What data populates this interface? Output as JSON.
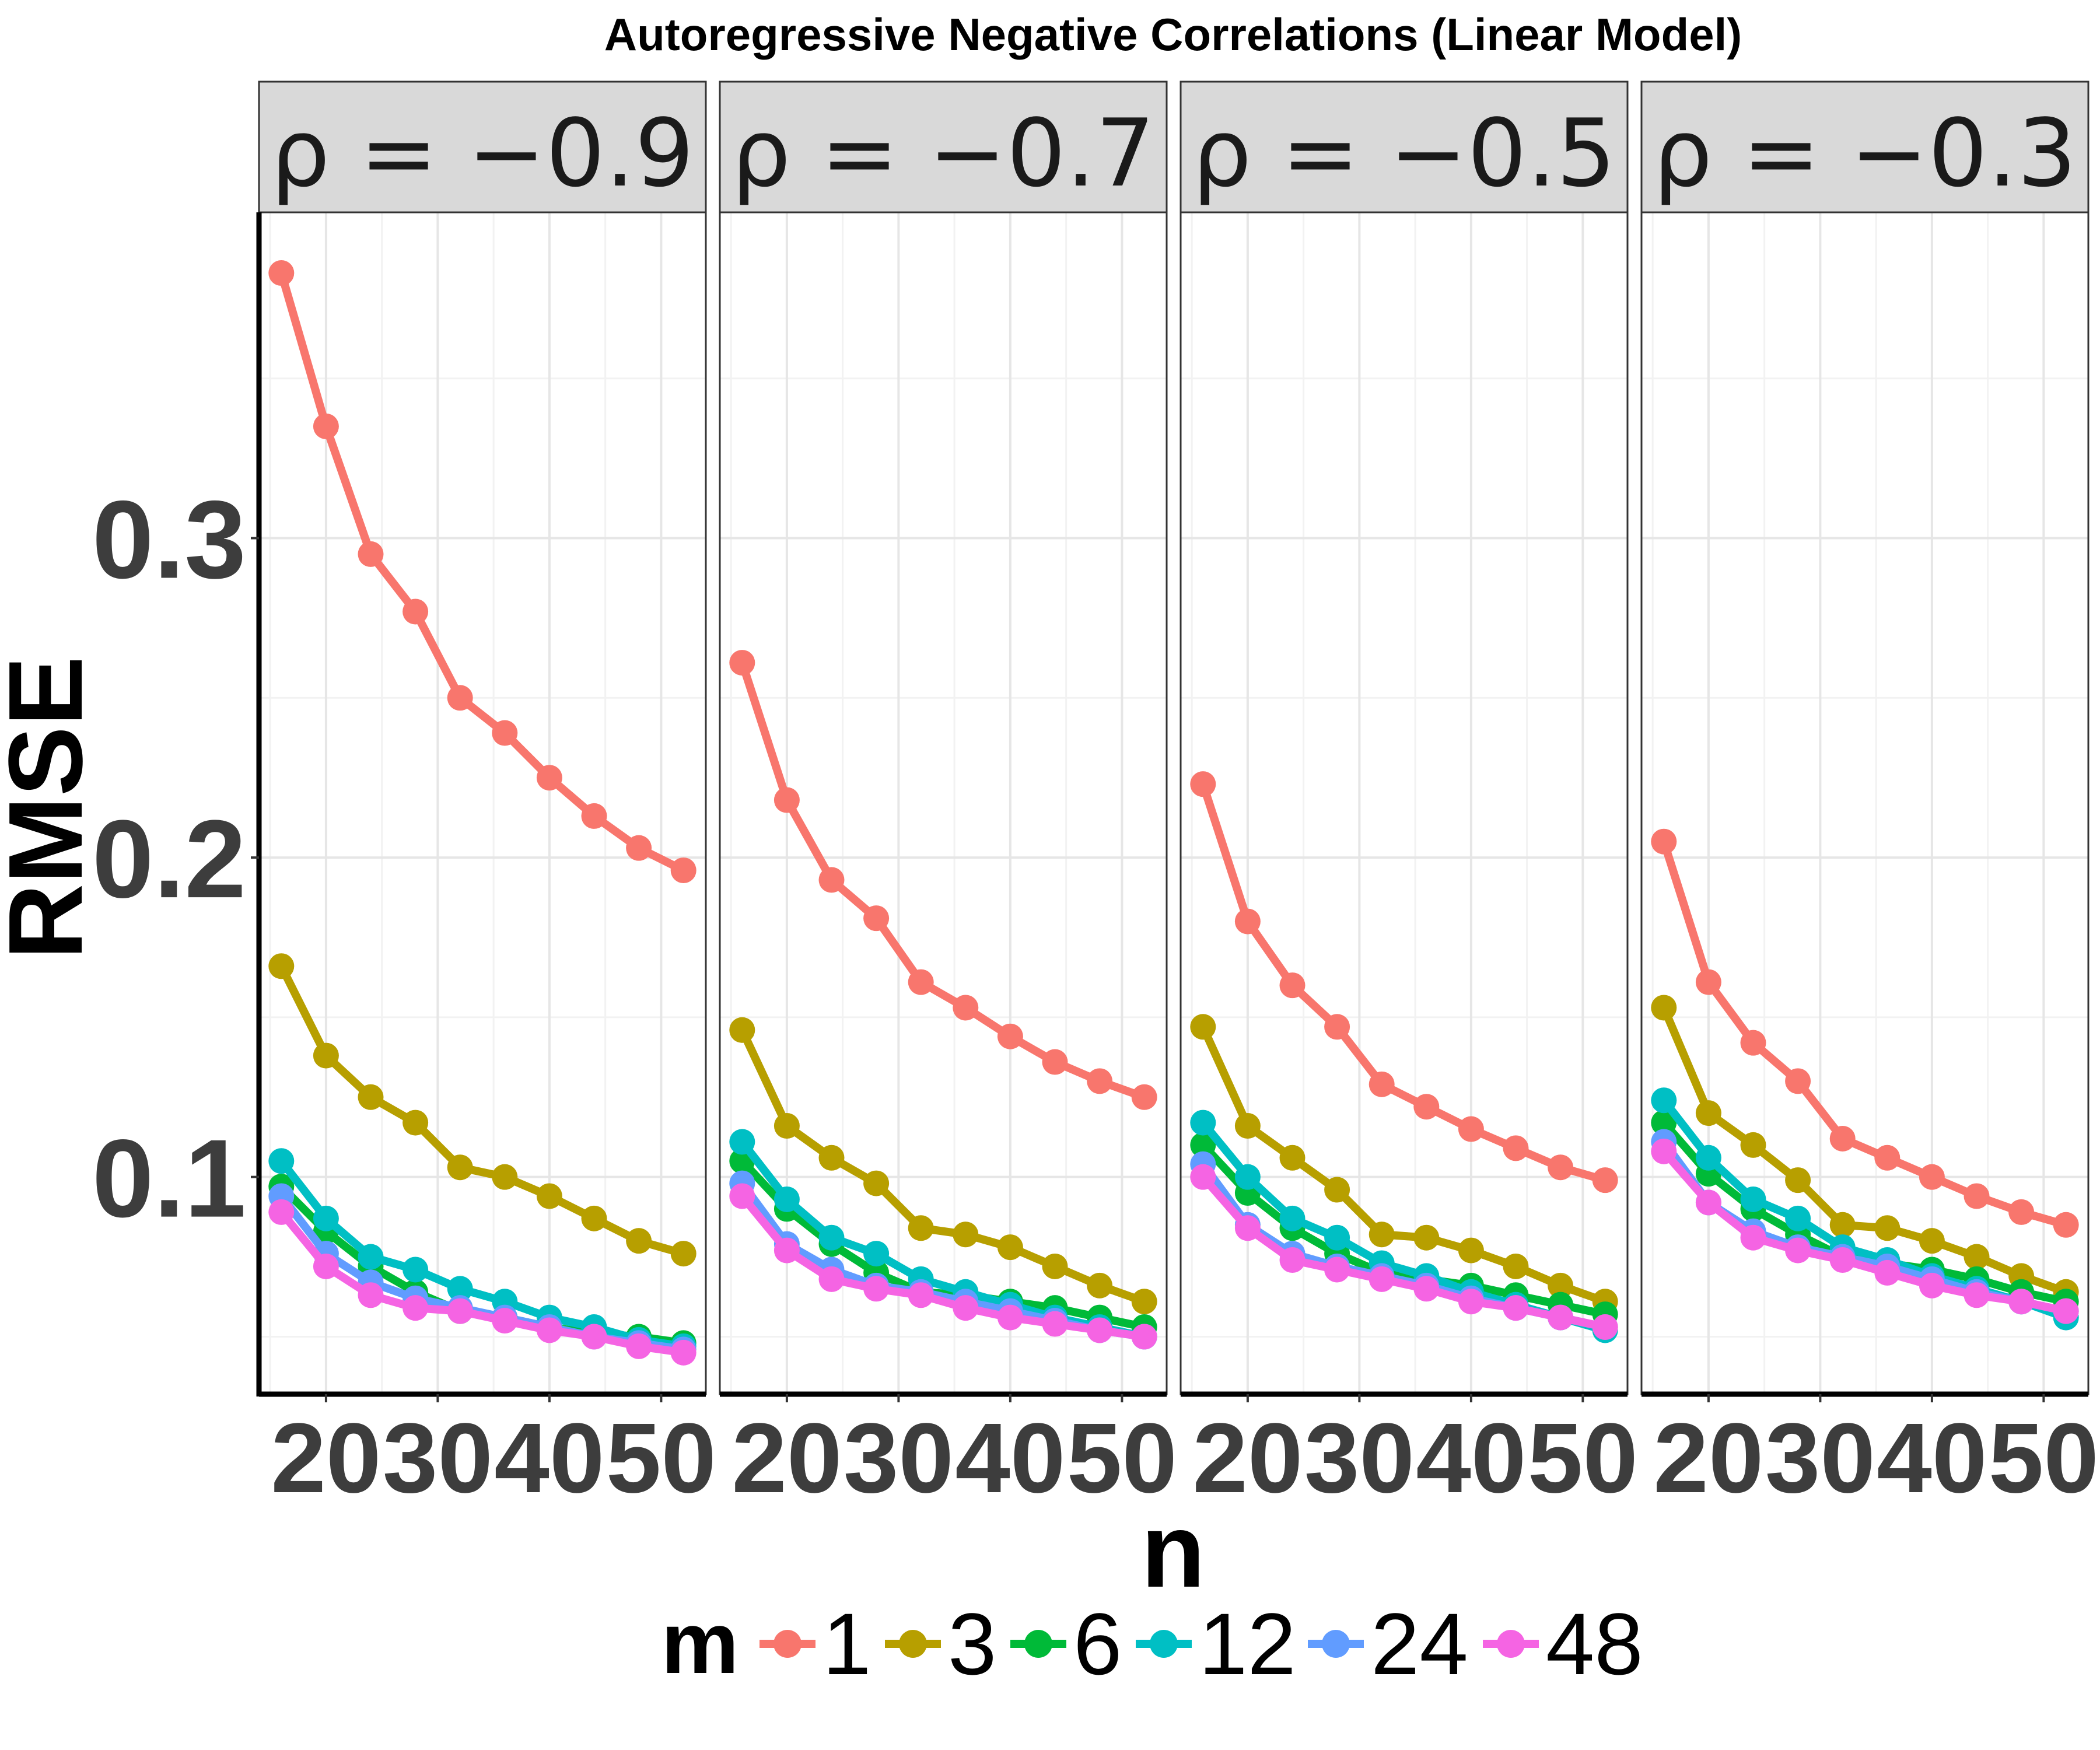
{
  "chart_data": {
    "type": "line",
    "title": "Autoregressive Negative Correlations (Linear Model)",
    "xlabel": "n",
    "ylabel": "RMSE",
    "xlim": [
      14,
      54
    ],
    "ylim": [
      0.032,
      0.402
    ],
    "xticks": [
      "20",
      "30",
      "40",
      "50"
    ],
    "yticks": [
      "0.1",
      "0.2",
      "0.3"
    ],
    "grid": true,
    "legend": {
      "title": "m",
      "position": "bottom"
    },
    "x": [
      16,
      20,
      24,
      28,
      32,
      36,
      40,
      44,
      48,
      52
    ],
    "facets": [
      {
        "strip": "ρ = −0.9",
        "series": [
          {
            "name": "1",
            "color": "#F8766D",
            "values": [
              0.383,
              0.335,
              0.295,
              0.277,
              0.25,
              0.239,
              0.225,
              0.213,
              0.203,
              0.196
            ]
          },
          {
            "name": "3",
            "color": "#B79F00",
            "values": [
              0.166,
              0.138,
              0.125,
              0.117,
              0.103,
              0.1,
              0.094,
              0.087,
              0.08,
              0.076
            ]
          },
          {
            "name": "6",
            "color": "#00BA38",
            "values": [
              0.097,
              0.083,
              0.072,
              0.064,
              0.058,
              0.056,
              0.053,
              0.051,
              0.05,
              0.048
            ]
          },
          {
            "name": "12",
            "color": "#00BFC4",
            "values": [
              0.105,
              0.087,
              0.075,
              0.071,
              0.065,
              0.061,
              0.056,
              0.053,
              0.049,
              0.047
            ]
          },
          {
            "name": "24",
            "color": "#619CFF",
            "values": [
              0.094,
              0.076,
              0.067,
              0.062,
              0.059,
              0.056,
              0.053,
              0.05,
              0.048,
              0.046
            ]
          },
          {
            "name": "48",
            "color": "#F564E3",
            "values": [
              0.089,
              0.072,
              0.063,
              0.059,
              0.058,
              0.055,
              0.052,
              0.05,
              0.047,
              0.045
            ]
          }
        ]
      },
      {
        "strip": "ρ = −0.7",
        "series": [
          {
            "name": "1",
            "color": "#F8766D",
            "values": [
              0.261,
              0.218,
              0.193,
              0.181,
              0.161,
              0.153,
              0.144,
              0.136,
              0.13,
              0.125
            ]
          },
          {
            "name": "3",
            "color": "#B79F00",
            "values": [
              0.146,
              0.116,
              0.106,
              0.098,
              0.084,
              0.082,
              0.078,
              0.072,
              0.066,
              0.061
            ]
          },
          {
            "name": "6",
            "color": "#00BA38",
            "values": [
              0.105,
              0.09,
              0.079,
              0.07,
              0.064,
              0.063,
              0.061,
              0.059,
              0.056,
              0.053
            ]
          },
          {
            "name": "12",
            "color": "#00BFC4",
            "values": [
              0.111,
              0.093,
              0.081,
              0.076,
              0.068,
              0.064,
              0.06,
              0.056,
              0.053,
              0.05
            ]
          },
          {
            "name": "24",
            "color": "#619CFF",
            "values": [
              0.098,
              0.079,
              0.071,
              0.066,
              0.064,
              0.061,
              0.058,
              0.055,
              0.052,
              0.05
            ]
          },
          {
            "name": "48",
            "color": "#F564E3",
            "values": [
              0.094,
              0.077,
              0.068,
              0.065,
              0.063,
              0.059,
              0.056,
              0.054,
              0.052,
              0.05
            ]
          }
        ]
      },
      {
        "strip": "ρ = −0.5",
        "series": [
          {
            "name": "1",
            "color": "#F8766D",
            "values": [
              0.223,
              0.18,
              0.16,
              0.147,
              0.129,
              0.122,
              0.115,
              0.109,
              0.103,
              0.099
            ]
          },
          {
            "name": "3",
            "color": "#B79F00",
            "values": [
              0.147,
              0.116,
              0.106,
              0.096,
              0.082,
              0.081,
              0.077,
              0.072,
              0.066,
              0.061
            ]
          },
          {
            "name": "6",
            "color": "#00BA38",
            "values": [
              0.11,
              0.095,
              0.084,
              0.076,
              0.07,
              0.068,
              0.066,
              0.063,
              0.06,
              0.057
            ]
          },
          {
            "name": "12",
            "color": "#00BFC4",
            "values": [
              0.117,
              0.1,
              0.087,
              0.081,
              0.073,
              0.069,
              0.064,
              0.06,
              0.056,
              0.052
            ]
          },
          {
            "name": "24",
            "color": "#619CFF",
            "values": [
              0.104,
              0.085,
              0.076,
              0.072,
              0.069,
              0.066,
              0.062,
              0.059,
              0.056,
              0.053
            ]
          },
          {
            "name": "48",
            "color": "#F564E3",
            "values": [
              0.1,
              0.084,
              0.074,
              0.071,
              0.068,
              0.065,
              0.061,
              0.059,
              0.056,
              0.053
            ]
          }
        ]
      },
      {
        "strip": "ρ = −0.3",
        "series": [
          {
            "name": "1",
            "color": "#F8766D",
            "values": [
              0.205,
              0.161,
              0.142,
              0.13,
              0.112,
              0.106,
              0.1,
              0.094,
              0.089,
              0.085
            ]
          },
          {
            "name": "3",
            "color": "#B79F00",
            "values": [
              0.153,
              0.12,
              0.11,
              0.099,
              0.085,
              0.084,
              0.08,
              0.075,
              0.069,
              0.064
            ]
          },
          {
            "name": "6",
            "color": "#00BA38",
            "values": [
              0.117,
              0.101,
              0.09,
              0.082,
              0.075,
              0.073,
              0.071,
              0.068,
              0.064,
              0.061
            ]
          },
          {
            "name": "12",
            "color": "#00BFC4",
            "values": [
              0.124,
              0.106,
              0.093,
              0.087,
              0.078,
              0.074,
              0.069,
              0.065,
              0.061,
              0.056
            ]
          },
          {
            "name": "24",
            "color": "#619CFF",
            "values": [
              0.111,
              0.092,
              0.083,
              0.078,
              0.075,
              0.072,
              0.068,
              0.064,
              0.061,
              0.058
            ]
          },
          {
            "name": "48",
            "color": "#F564E3",
            "values": [
              0.108,
              0.092,
              0.081,
              0.077,
              0.074,
              0.07,
              0.066,
              0.063,
              0.061,
              0.058
            ]
          }
        ]
      }
    ]
  }
}
